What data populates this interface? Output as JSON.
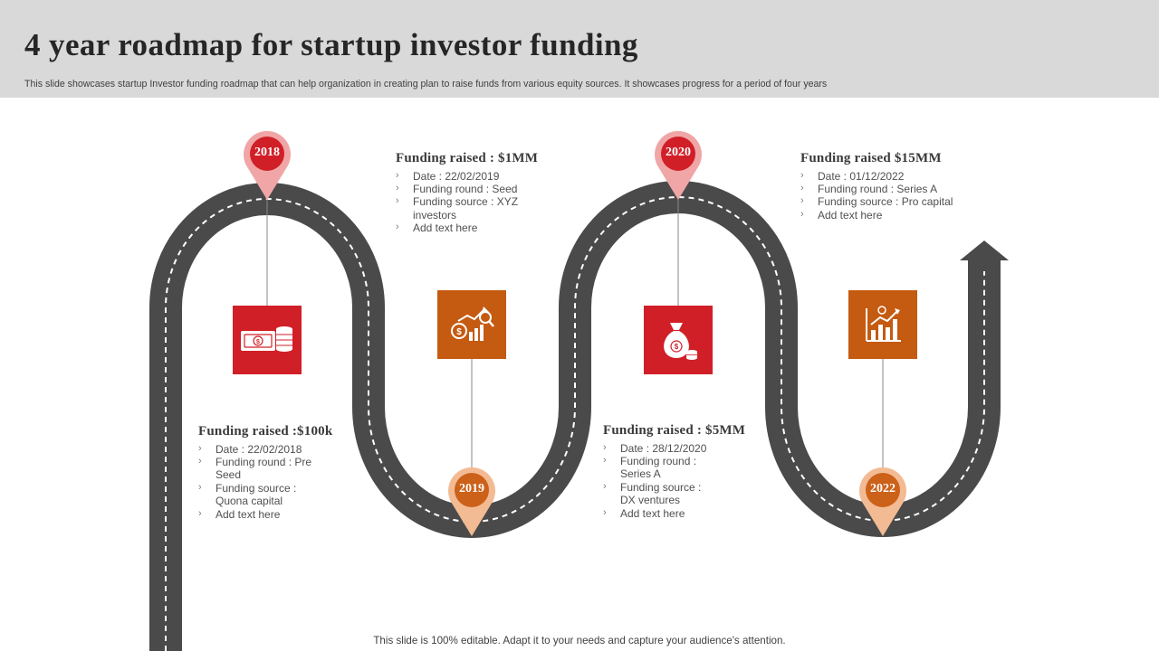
{
  "header": {
    "title": "4 year roadmap for startup investor funding",
    "subtitle": "This slide showcases startup Investor funding roadmap that can help organization in creating plan to  raise funds from various equity sources. It showcases progress for a period of four years"
  },
  "milestones": [
    {
      "year": "2018",
      "heading": "Funding  raised :$100k",
      "items": [
        "Date : 22/02/2018",
        "Funding round : Pre",
        "Seed",
        "Funding source :",
        "Quona capital",
        "Add text here"
      ],
      "icon": "cash-coins-icon",
      "color": "#d11f27"
    },
    {
      "year": "2019",
      "heading": "Funding  raised : $1MM",
      "items": [
        "Date : 22/02/2019",
        "Funding round : Seed",
        "Funding source :  XYZ",
        "investors",
        "Add text here"
      ],
      "icon": "dollar-growth-chart-icon",
      "color": "#c55a11"
    },
    {
      "year": "2020",
      "heading": "Funding  raised : $5MM",
      "items": [
        "Date : 28/12/2020",
        "Funding round :",
        "Series A",
        "Funding source :",
        "DX ventures",
        "Add text here"
      ],
      "icon": "money-bag-icon",
      "color": "#d11f27"
    },
    {
      "year": "2022",
      "heading": "Funding  raised $15MM",
      "items": [
        "Date : 01/12/2022",
        "Funding round : Series A",
        "Funding source : Pro capital",
        "Add text here"
      ],
      "icon": "bar-chart-growth-icon",
      "color": "#c55a11"
    }
  ],
  "colors": {
    "road": "#4a4a4a",
    "road_marking": "#ffffff",
    "pin_red": "#d11f27",
    "pin_orange": "#e07a35"
  },
  "footer": {
    "note": "This slide is 100% editable. Adapt it to your needs and capture your audience's attention."
  }
}
